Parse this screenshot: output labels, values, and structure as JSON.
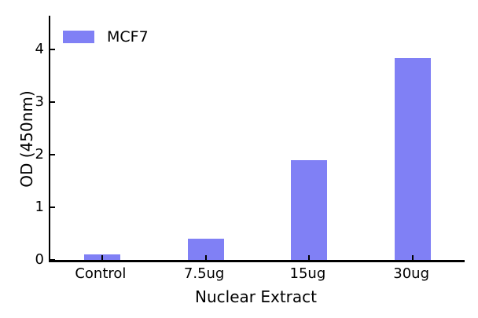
{
  "chart_data": {
    "type": "bar",
    "title": "",
    "categories": [
      "Control",
      "7.5ug",
      "15ug",
      "30ug"
    ],
    "series": [
      {
        "name": "MCF7",
        "values": [
          0.1,
          0.4,
          1.9,
          3.85
        ]
      }
    ],
    "xlabel": "Nuclear Extract",
    "ylabel": "OD (450nm)",
    "ylim": [
      0,
      4.65
    ],
    "yticks": [
      0,
      1,
      2,
      3,
      4
    ],
    "grid": false,
    "legend": {
      "label": "MCF7",
      "position": "upper-left",
      "frame": false
    },
    "colors": {
      "bar_fill": "#8080f5",
      "axis": "#000000",
      "text": "#000000",
      "background": "#ffffff"
    }
  }
}
